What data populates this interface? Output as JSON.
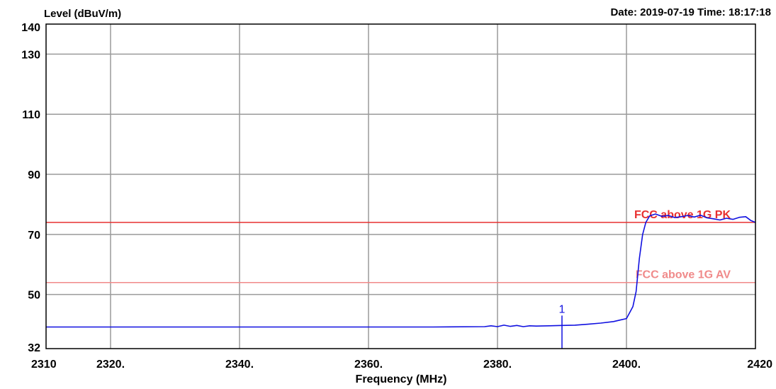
{
  "header": {
    "date_time": "Date: 2019-07-19  Time: 18:17:18"
  },
  "chart_data": {
    "type": "line",
    "ylabel": "Level (dBuV/m)",
    "xlabel": "Frequency (MHz)",
    "xlim": [
      2310,
      2420
    ],
    "ylim": [
      32,
      140
    ],
    "x_ticks": [
      {
        "value": 2310,
        "label": "2310"
      },
      {
        "value": 2320,
        "label": "2320."
      },
      {
        "value": 2340,
        "label": "2340."
      },
      {
        "value": 2360,
        "label": "2360."
      },
      {
        "value": 2380,
        "label": "2380."
      },
      {
        "value": 2400,
        "label": "2400."
      },
      {
        "value": 2420,
        "label": "2420"
      }
    ],
    "x_gridlines": [
      2320,
      2340,
      2360,
      2380,
      2400
    ],
    "y_ticks": [
      {
        "value": 140,
        "label": "140"
      },
      {
        "value": 130,
        "label": "130"
      },
      {
        "value": 110,
        "label": "110"
      },
      {
        "value": 90,
        "label": "90"
      },
      {
        "value": 70,
        "label": "70"
      },
      {
        "value": 50,
        "label": "50"
      },
      {
        "value": 32,
        "label": "32"
      }
    ],
    "y_gridlines": [
      130,
      110,
      90,
      70,
      50
    ],
    "grid": true,
    "limit_lines": [
      {
        "name": "FCC above 1G PK",
        "value": 74,
        "color": "#e83030"
      },
      {
        "name": "FCC above 1G AV",
        "value": 54,
        "color": "#f08a8a"
      }
    ],
    "series": [
      {
        "color": "#1010e0",
        "points": [
          [
            2310,
            39.2
          ],
          [
            2320,
            39.2
          ],
          [
            2330,
            39.2
          ],
          [
            2340,
            39.2
          ],
          [
            2350,
            39.2
          ],
          [
            2360,
            39.2
          ],
          [
            2370,
            39.2
          ],
          [
            2378,
            39.3
          ],
          [
            2379,
            39.6
          ],
          [
            2380,
            39.3
          ],
          [
            2381,
            39.8
          ],
          [
            2382,
            39.4
          ],
          [
            2383,
            39.7
          ],
          [
            2384,
            39.3
          ],
          [
            2385,
            39.6
          ],
          [
            2386,
            39.5
          ],
          [
            2388,
            39.6
          ],
          [
            2390,
            39.7
          ],
          [
            2392,
            39.8
          ],
          [
            2394,
            40.1
          ],
          [
            2396,
            40.5
          ],
          [
            2398,
            41.0
          ],
          [
            2399,
            41.5
          ],
          [
            2400,
            42.0
          ],
          [
            2401,
            46
          ],
          [
            2401.5,
            51
          ],
          [
            2402,
            62
          ],
          [
            2402.5,
            70
          ],
          [
            2403,
            74
          ],
          [
            2403.6,
            76.2
          ],
          [
            2404.5,
            76.8
          ],
          [
            2405.5,
            76.0
          ],
          [
            2406.5,
            76.3
          ],
          [
            2407.5,
            75.6
          ],
          [
            2408.5,
            75.9
          ],
          [
            2409.5,
            76.3
          ],
          [
            2410.5,
            75.8
          ],
          [
            2411.5,
            76.4
          ],
          [
            2412.5,
            75.5
          ],
          [
            2413.5,
            75.2
          ],
          [
            2414.5,
            74.8
          ],
          [
            2415.5,
            75.4
          ],
          [
            2416.5,
            75.0
          ],
          [
            2417.5,
            75.7
          ],
          [
            2418.5,
            75.9
          ],
          [
            2419.3,
            74.6
          ],
          [
            2420,
            74.0
          ]
        ]
      }
    ],
    "markers": [
      {
        "label": "1",
        "x": 2390,
        "y": 39.7
      }
    ]
  }
}
